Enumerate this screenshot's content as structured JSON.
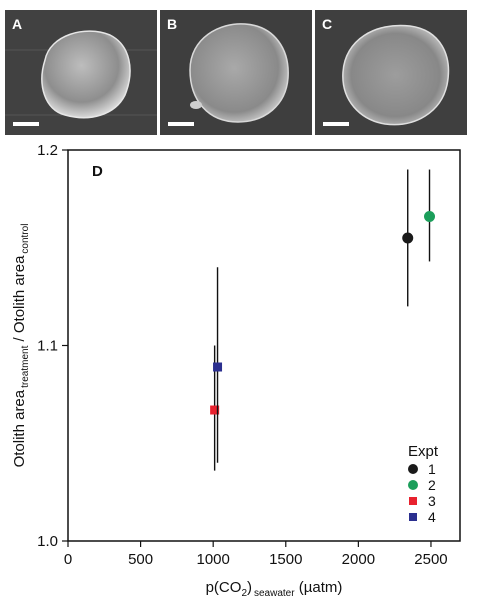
{
  "panels": [
    {
      "letter": "A"
    },
    {
      "letter": "B"
    },
    {
      "letter": "C"
    }
  ],
  "chart_data": {
    "type": "scatter",
    "panel_letter": "D",
    "xlabel_main": "p(CO",
    "xlabel_sub2": "2",
    "xlabel_close": ")",
    "xlabel_sub": "seawater",
    "xlabel_unit": " (µatm)",
    "ylabel_part1": "Otolith area",
    "ylabel_sub1": "treatment",
    "ylabel_part2": " / Otolith area",
    "ylabel_sub2": "control",
    "xlim": [
      0,
      2700
    ],
    "ylim": [
      1.0,
      1.2
    ],
    "xticks": [
      0,
      500,
      1000,
      1500,
      2000,
      2500
    ],
    "yticks": [
      1.0,
      1.1,
      1.2
    ],
    "ytick_labels": [
      "1.0",
      "1.1",
      "1.2"
    ],
    "legend_title": "Expt",
    "legend_position": "bottom-right",
    "series": [
      {
        "name": "1",
        "marker": "circle",
        "color": "#1a1a1a",
        "x": 2340,
        "y": 1.155,
        "err_low": 1.12,
        "err_high": 1.19
      },
      {
        "name": "2",
        "marker": "circle",
        "color": "#1b9e5a",
        "x": 2490,
        "y": 1.166,
        "err_low": 1.143,
        "err_high": 1.19
      },
      {
        "name": "3",
        "marker": "square",
        "color": "#e8212e",
        "x": 1010,
        "y": 1.067,
        "err_low": 1.036,
        "err_high": 1.1
      },
      {
        "name": "4",
        "marker": "square",
        "color": "#2b2f8f",
        "x": 1030,
        "y": 1.089,
        "err_low": 1.04,
        "err_high": 1.14
      }
    ]
  }
}
